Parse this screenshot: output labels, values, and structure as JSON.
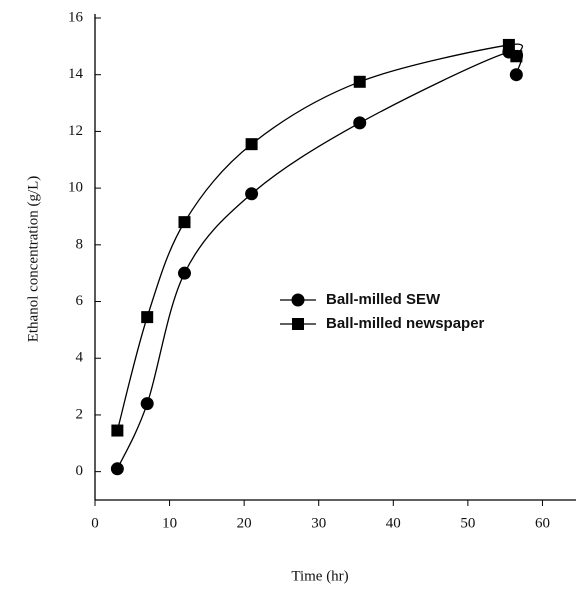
{
  "chart_data": {
    "type": "line",
    "x_label": "Time (hr)",
    "y_label": "Ethanol concentration (g/L)",
    "xlim": [
      0,
      64.5
    ],
    "xticks": [
      0,
      10,
      20,
      30,
      40,
      50,
      60
    ],
    "ylim": [
      -1,
      16
    ],
    "yticks": [
      0,
      2,
      4,
      6,
      8,
      10,
      12,
      14,
      16
    ],
    "legend": "right",
    "series": [
      {
        "name": "Ball-milled SEW",
        "color": "#000000",
        "marker": "circle",
        "x": [
          3,
          7,
          12,
          21,
          35.5,
          55.5,
          56.5
        ],
        "values": [
          0.1,
          2.4,
          7.0,
          9.8,
          12.3,
          14.8,
          14.0
        ]
      },
      {
        "name": "Ball-milled newspaper",
        "color": "#000000",
        "marker": "square",
        "x": [
          3,
          7,
          12,
          21,
          35.5,
          55.5,
          56.5
        ],
        "values": [
          1.45,
          5.45,
          8.8,
          11.55,
          13.75,
          15.05,
          14.65
        ]
      }
    ]
  }
}
